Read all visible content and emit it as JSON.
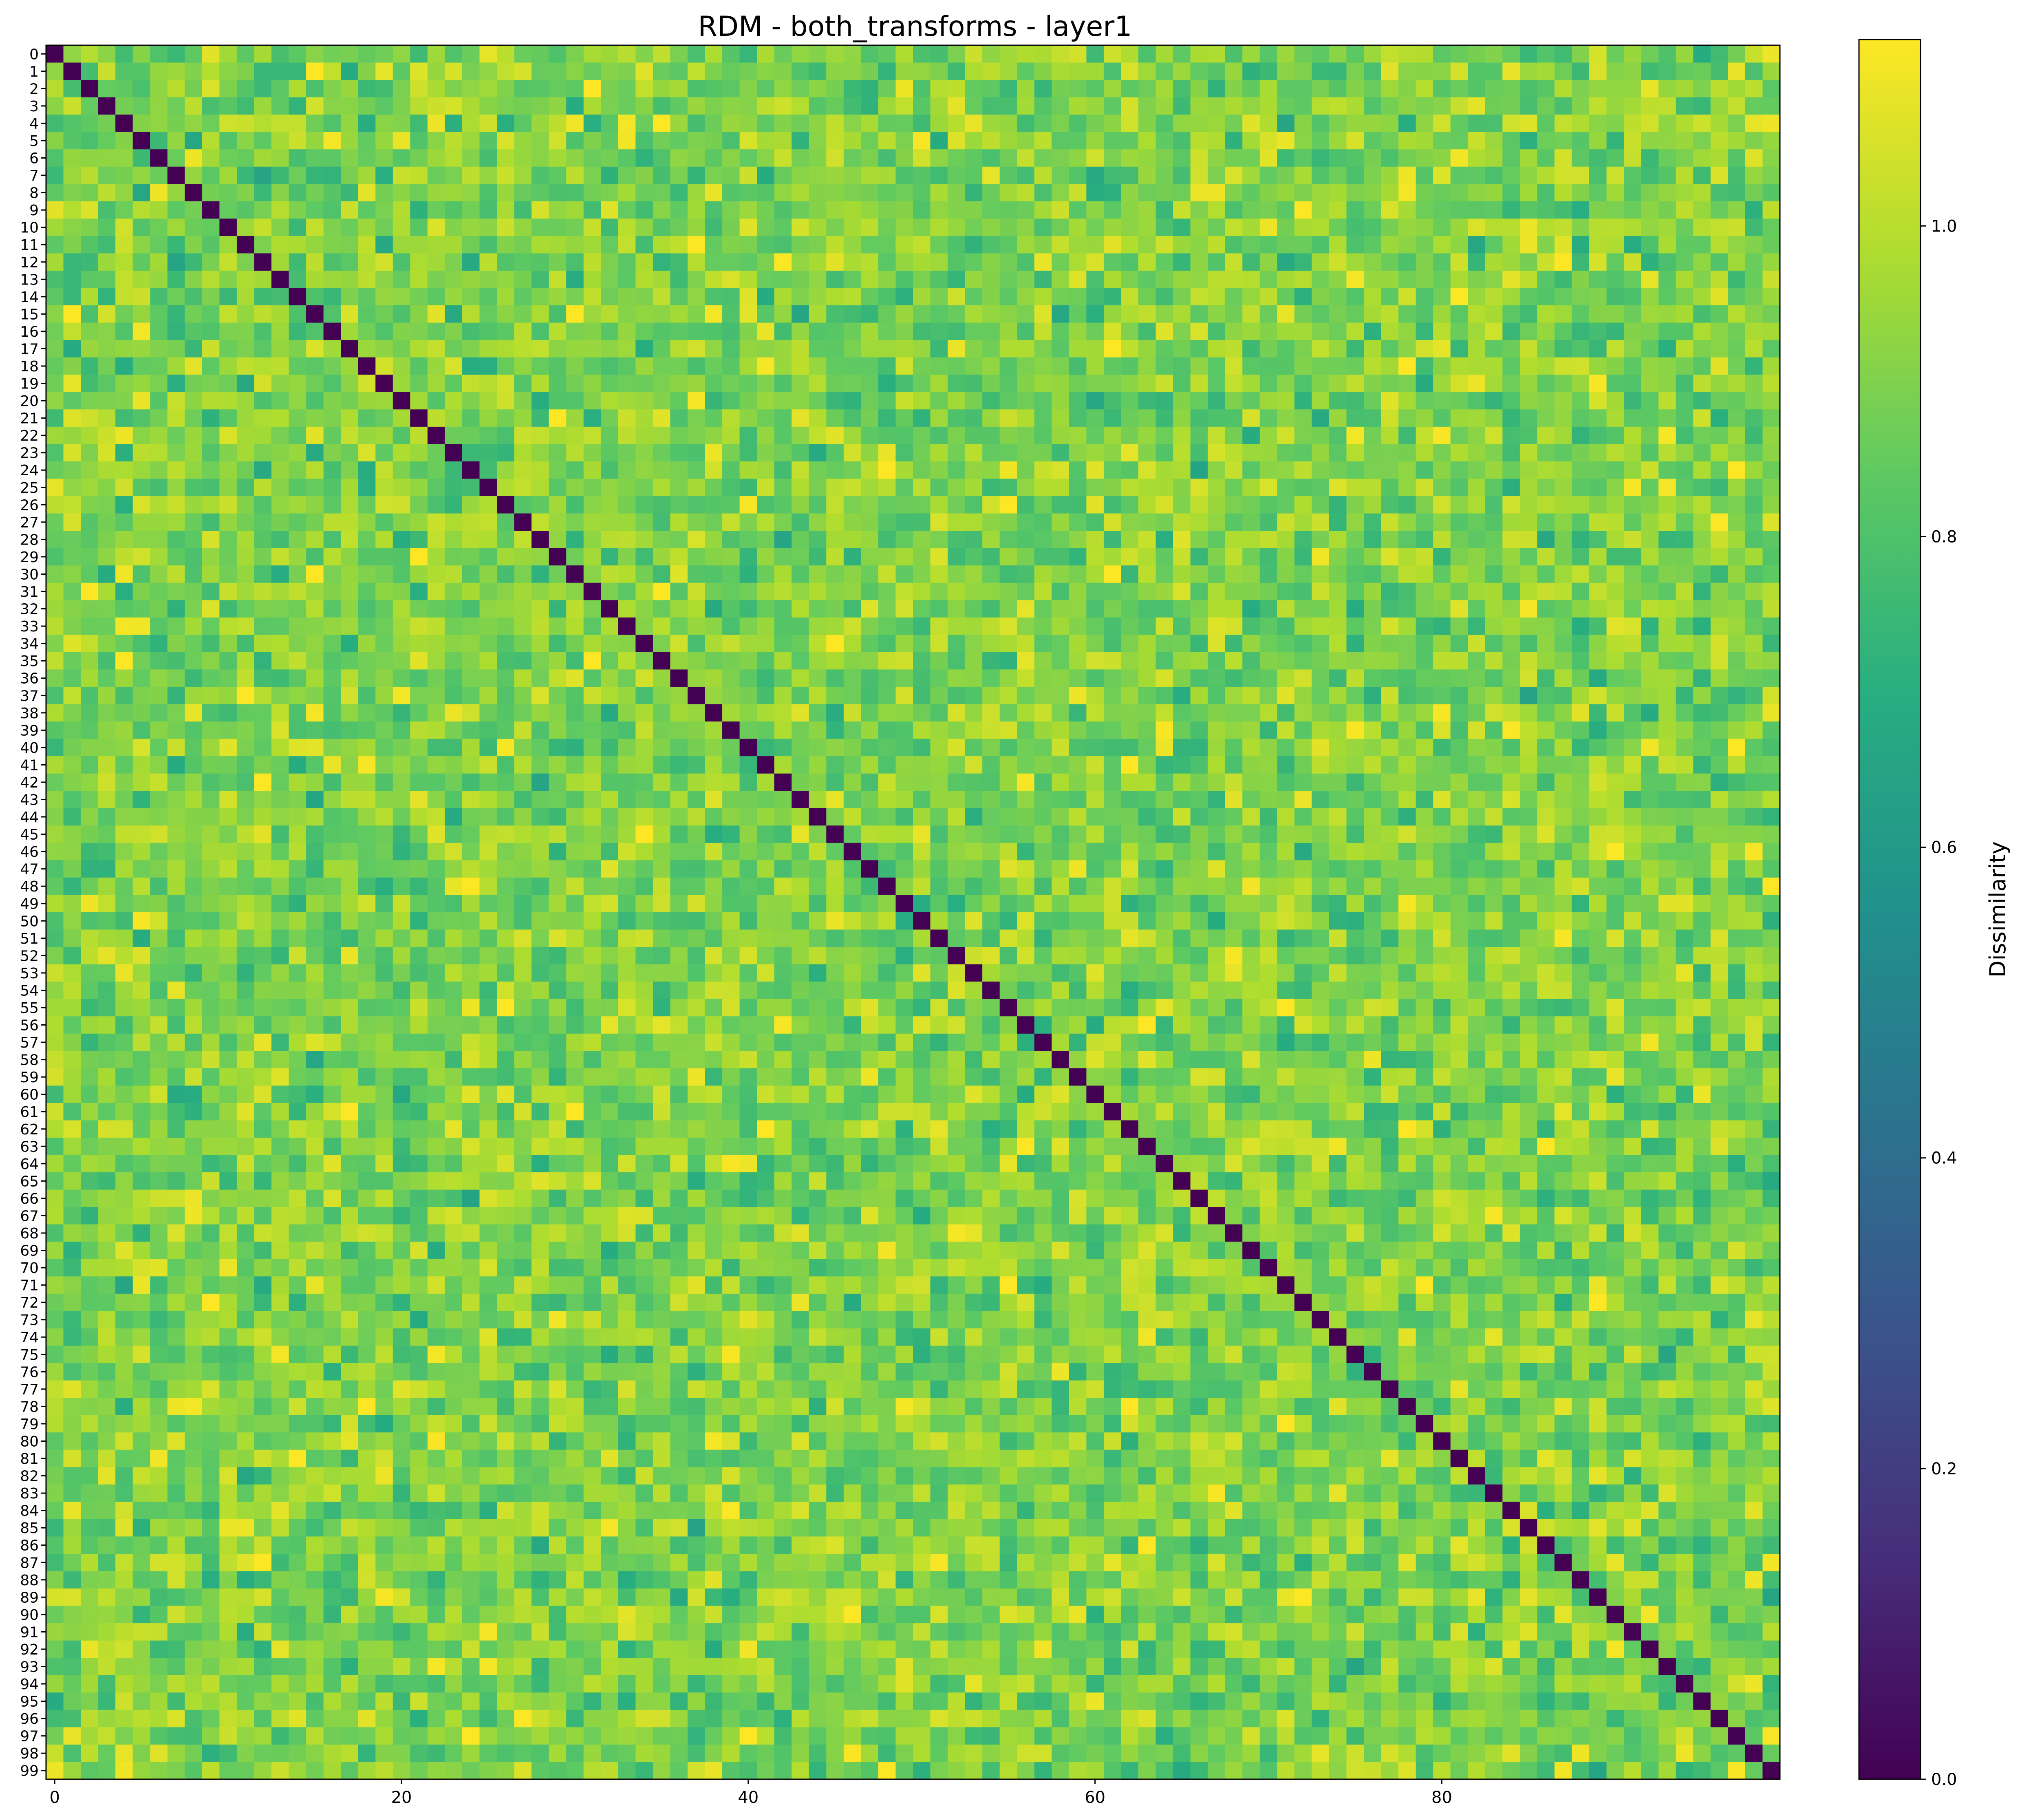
{
  "chart_data": {
    "type": "heatmap",
    "title": "RDM - both_transforms - layer1",
    "n": 100,
    "x_ticks": [
      0,
      20,
      40,
      60,
      80
    ],
    "y_ticks": [
      0,
      1,
      2,
      3,
      4,
      5,
      6,
      7,
      8,
      9,
      10,
      11,
      12,
      13,
      14,
      15,
      16,
      17,
      18,
      19,
      20,
      21,
      22,
      23,
      24,
      25,
      26,
      27,
      28,
      29,
      30,
      31,
      32,
      33,
      34,
      35,
      36,
      37,
      38,
      39,
      40,
      41,
      42,
      43,
      44,
      45,
      46,
      47,
      48,
      49,
      50,
      51,
      52,
      53,
      54,
      55,
      56,
      57,
      58,
      59,
      60,
      61,
      62,
      63,
      64,
      65,
      66,
      67,
      68,
      69,
      70,
      71,
      72,
      73,
      74,
      75,
      76,
      77,
      78,
      79,
      80,
      81,
      82,
      83,
      84,
      85,
      86,
      87,
      88,
      89,
      90,
      91,
      92,
      93,
      94,
      95,
      96,
      97,
      98,
      99
    ],
    "diagonal_value": 0.0,
    "typical_range": [
      0.62,
      1.12
    ],
    "mean_off_diagonal": 0.9,
    "colormap": "viridis",
    "colorbar": {
      "label": "Dissimilarity",
      "min": 0.0,
      "max": 1.12,
      "ticks": [
        0.0,
        0.2,
        0.4,
        0.6,
        0.8,
        1.0
      ],
      "tick_labels": [
        "0.0",
        "0.2",
        "0.4",
        "0.6",
        "0.8",
        "1.0"
      ]
    }
  }
}
